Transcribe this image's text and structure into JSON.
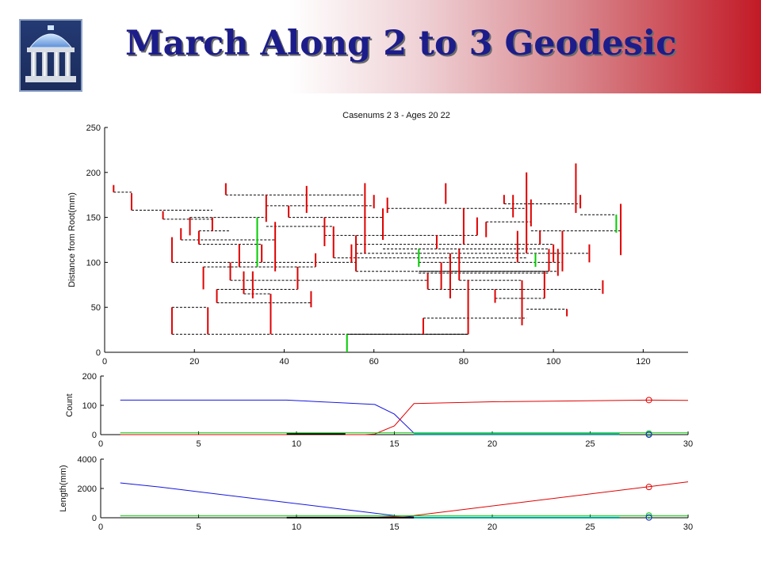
{
  "slide": {
    "title": "March Along 2 to 3 Geodesic"
  },
  "colors": {
    "title": "#1c1d8a",
    "red": "#e00000",
    "green": "#00cc00",
    "blue": "#1515e0",
    "cyan": "#00a0a0",
    "black": "#000000"
  },
  "icons": {
    "logo": "old-well-icon"
  },
  "chart_data": [
    {
      "type": "tree",
      "title": "Casenums 2 3 - Ages 20 22",
      "xlabel": "",
      "ylabel": "Distance from Root(mm)",
      "xlim": [
        0,
        130
      ],
      "ylim": [
        0,
        250
      ],
      "xticks": [
        0,
        20,
        40,
        60,
        80,
        100,
        120
      ],
      "yticks": [
        0,
        50,
        100,
        150,
        200,
        250
      ],
      "segments_note": "dashed horizontal connectors (black) join vertical branch segments (red, a few green)",
      "red_branches": [
        {
          "x": 2,
          "y0": 178,
          "y1": 186
        },
        {
          "x": 6,
          "y0": 158,
          "y1": 177
        },
        {
          "x": 13,
          "y0": 148,
          "y1": 157
        },
        {
          "x": 15,
          "y0": 20,
          "y1": 50
        },
        {
          "x": 15,
          "y0": 100,
          "y1": 128
        },
        {
          "x": 17,
          "y0": 125,
          "y1": 138
        },
        {
          "x": 19,
          "y0": 130,
          "y1": 150
        },
        {
          "x": 21,
          "y0": 120,
          "y1": 135
        },
        {
          "x": 22,
          "y0": 70,
          "y1": 95
        },
        {
          "x": 23,
          "y0": 20,
          "y1": 50
        },
        {
          "x": 24,
          "y0": 135,
          "y1": 150
        },
        {
          "x": 25,
          "y0": 55,
          "y1": 70
        },
        {
          "x": 27,
          "y0": 175,
          "y1": 188
        },
        {
          "x": 28,
          "y0": 80,
          "y1": 100
        },
        {
          "x": 30,
          "y0": 95,
          "y1": 120
        },
        {
          "x": 31,
          "y0": 65,
          "y1": 90
        },
        {
          "x": 33,
          "y0": 60,
          "y1": 90
        },
        {
          "x": 35,
          "y0": 100,
          "y1": 120
        },
        {
          "x": 36,
          "y0": 145,
          "y1": 175
        },
        {
          "x": 37,
          "y0": 20,
          "y1": 65
        },
        {
          "x": 38,
          "y0": 90,
          "y1": 145
        },
        {
          "x": 41,
          "y0": 150,
          "y1": 163
        },
        {
          "x": 43,
          "y0": 70,
          "y1": 95
        },
        {
          "x": 45,
          "y0": 155,
          "y1": 185
        },
        {
          "x": 46,
          "y0": 50,
          "y1": 68
        },
        {
          "x": 47,
          "y0": 95,
          "y1": 110
        },
        {
          "x": 49,
          "y0": 118,
          "y1": 150
        },
        {
          "x": 51,
          "y0": 105,
          "y1": 140
        },
        {
          "x": 55,
          "y0": 100,
          "y1": 120
        },
        {
          "x": 56,
          "y0": 90,
          "y1": 130
        },
        {
          "x": 58,
          "y0": 110,
          "y1": 188
        },
        {
          "x": 60,
          "y0": 160,
          "y1": 175
        },
        {
          "x": 62,
          "y0": 125,
          "y1": 160
        },
        {
          "x": 63,
          "y0": 155,
          "y1": 172
        },
        {
          "x": 71,
          "y0": 20,
          "y1": 38
        },
        {
          "x": 72,
          "y0": 70,
          "y1": 88
        },
        {
          "x": 74,
          "y0": 115,
          "y1": 130
        },
        {
          "x": 75,
          "y0": 70,
          "y1": 100
        },
        {
          "x": 76,
          "y0": 165,
          "y1": 188
        },
        {
          "x": 77,
          "y0": 60,
          "y1": 110
        },
        {
          "x": 79,
          "y0": 80,
          "y1": 115
        },
        {
          "x": 80,
          "y0": 120,
          "y1": 160
        },
        {
          "x": 81,
          "y0": 20,
          "y1": 80
        },
        {
          "x": 83,
          "y0": 130,
          "y1": 150
        },
        {
          "x": 85,
          "y0": 128,
          "y1": 145
        },
        {
          "x": 87,
          "y0": 55,
          "y1": 70
        },
        {
          "x": 89,
          "y0": 165,
          "y1": 175
        },
        {
          "x": 91,
          "y0": 150,
          "y1": 175
        },
        {
          "x": 92,
          "y0": 100,
          "y1": 135
        },
        {
          "x": 93,
          "y0": 30,
          "y1": 80
        },
        {
          "x": 94,
          "y0": 110,
          "y1": 200
        },
        {
          "x": 95,
          "y0": 140,
          "y1": 170
        },
        {
          "x": 97,
          "y0": 120,
          "y1": 135
        },
        {
          "x": 98,
          "y0": 60,
          "y1": 90
        },
        {
          "x": 99,
          "y0": 90,
          "y1": 115
        },
        {
          "x": 100,
          "y0": 100,
          "y1": 120
        },
        {
          "x": 101,
          "y0": 85,
          "y1": 115
        },
        {
          "x": 102,
          "y0": 90,
          "y1": 135
        },
        {
          "x": 103,
          "y0": 40,
          "y1": 48
        },
        {
          "x": 105,
          "y0": 155,
          "y1": 210
        },
        {
          "x": 106,
          "y0": 160,
          "y1": 175
        },
        {
          "x": 108,
          "y0": 100,
          "y1": 120
        },
        {
          "x": 111,
          "y0": 65,
          "y1": 80
        },
        {
          "x": 115,
          "y0": 108,
          "y1": 165
        }
      ],
      "green_branches": [
        {
          "x": 34,
          "y0": 95,
          "y1": 150
        },
        {
          "x": 54,
          "y0": 0,
          "y1": 20
        },
        {
          "x": 70,
          "y0": 95,
          "y1": 115
        },
        {
          "x": 96,
          "y0": 95,
          "y1": 110
        },
        {
          "x": 114,
          "y0": 133,
          "y1": 153
        }
      ],
      "connectors": [
        {
          "y": 178,
          "x0": 2,
          "x1": 6
        },
        {
          "y": 158,
          "x0": 6,
          "x1": 24
        },
        {
          "y": 148,
          "x0": 13,
          "x1": 24
        },
        {
          "y": 150,
          "x0": 19,
          "x1": 36
        },
        {
          "y": 135,
          "x0": 21,
          "x1": 28
        },
        {
          "y": 125,
          "x0": 17,
          "x1": 38
        },
        {
          "y": 120,
          "x0": 21,
          "x1": 35
        },
        {
          "y": 100,
          "x0": 15,
          "x1": 56
        },
        {
          "y": 95,
          "x0": 22,
          "x1": 47
        },
        {
          "y": 80,
          "x0": 28,
          "x1": 72
        },
        {
          "y": 70,
          "x0": 25,
          "x1": 43
        },
        {
          "y": 65,
          "x0": 31,
          "x1": 37
        },
        {
          "y": 55,
          "x0": 25,
          "x1": 46
        },
        {
          "y": 50,
          "x0": 15,
          "x1": 23
        },
        {
          "y": 48,
          "x0": 94,
          "x1": 103
        },
        {
          "y": 20,
          "x0": 15,
          "x1": 81
        },
        {
          "y": 38,
          "x0": 71,
          "x1": 94
        },
        {
          "y": 175,
          "x0": 27,
          "x1": 58
        },
        {
          "y": 163,
          "x0": 36,
          "x1": 60
        },
        {
          "y": 160,
          "x0": 63,
          "x1": 94
        },
        {
          "y": 150,
          "x0": 41,
          "x1": 62
        },
        {
          "y": 140,
          "x0": 36,
          "x1": 51
        },
        {
          "y": 130,
          "x0": 49,
          "x1": 83
        },
        {
          "y": 120,
          "x0": 56,
          "x1": 100
        },
        {
          "y": 115,
          "x0": 62,
          "x1": 99
        },
        {
          "y": 110,
          "x0": 56,
          "x1": 108
        },
        {
          "y": 105,
          "x0": 51,
          "x1": 94
        },
        {
          "y": 100,
          "x0": 70,
          "x1": 102
        },
        {
          "y": 90,
          "x0": 56,
          "x1": 101
        },
        {
          "y": 88,
          "x0": 70,
          "x1": 99
        },
        {
          "y": 80,
          "x0": 79,
          "x1": 93
        },
        {
          "y": 70,
          "x0": 72,
          "x1": 111
        },
        {
          "y": 60,
          "x0": 87,
          "x1": 98
        },
        {
          "y": 165,
          "x0": 89,
          "x1": 106
        },
        {
          "y": 135,
          "x0": 95,
          "x1": 115
        },
        {
          "y": 145,
          "x0": 85,
          "x1": 95
        },
        {
          "y": 153,
          "x0": 106,
          "x1": 114
        }
      ],
      "black_segments": [
        {
          "x0": 54,
          "x1": 81,
          "y": 20
        },
        {
          "x0": 70,
          "x1": 99,
          "y": 90
        }
      ]
    },
    {
      "type": "line",
      "title": "",
      "xlabel": "",
      "ylabel": "Count",
      "xlim": [
        0,
        30
      ],
      "ylim": [
        0,
        200
      ],
      "xticks": [
        0,
        5,
        10,
        15,
        20,
        25,
        30
      ],
      "yticks": [
        0,
        100,
        200
      ],
      "series": [
        {
          "color": "blue",
          "x": [
            1,
            9.5,
            11,
            14,
            15,
            16
          ],
          "y": [
            118,
            118,
            113,
            103,
            70,
            5
          ]
        },
        {
          "color": "red",
          "x": [
            1,
            13.5,
            14,
            15,
            16,
            20,
            28,
            30
          ],
          "y": [
            0,
            0,
            2,
            30,
            106,
            112,
            118,
            117
          ]
        },
        {
          "color": "green",
          "x": [
            1,
            30
          ],
          "y": [
            6,
            6
          ]
        },
        {
          "color": "black",
          "x": [
            9.5,
            12.5
          ],
          "y": [
            2,
            2
          ]
        },
        {
          "color": "cyan",
          "x": [
            16,
            26.5
          ],
          "y": [
            2,
            2
          ]
        }
      ],
      "markers": [
        {
          "color": "red",
          "x": 28,
          "y": 118
        },
        {
          "color": "green",
          "x": 28,
          "y": 4
        },
        {
          "color": "blue",
          "x": 28,
          "y": 0
        }
      ]
    },
    {
      "type": "line",
      "title": "",
      "xlabel": "",
      "ylabel": "Length(mm)",
      "xlim": [
        0,
        30
      ],
      "ylim": [
        0,
        4000
      ],
      "xticks": [
        0,
        5,
        10,
        15,
        20,
        25,
        30
      ],
      "yticks": [
        0,
        2000,
        4000
      ],
      "series": [
        {
          "color": "blue",
          "x": [
            1,
            3,
            15,
            16
          ],
          "y": [
            2380,
            2100,
            150,
            60
          ]
        },
        {
          "color": "red",
          "x": [
            14,
            16,
            30
          ],
          "y": [
            20,
            150,
            2450
          ]
        },
        {
          "color": "green",
          "x": [
            1,
            30
          ],
          "y": [
            130,
            130
          ]
        },
        {
          "color": "black",
          "x": [
            9.5,
            16
          ],
          "y": [
            10,
            10
          ]
        },
        {
          "color": "cyan",
          "x": [
            16,
            26.5
          ],
          "y": [
            10,
            10
          ]
        }
      ],
      "markers": [
        {
          "color": "red",
          "x": 28,
          "y": 2100
        },
        {
          "color": "green",
          "x": 28,
          "y": 150
        },
        {
          "color": "blue",
          "x": 28,
          "y": 20
        }
      ]
    }
  ]
}
